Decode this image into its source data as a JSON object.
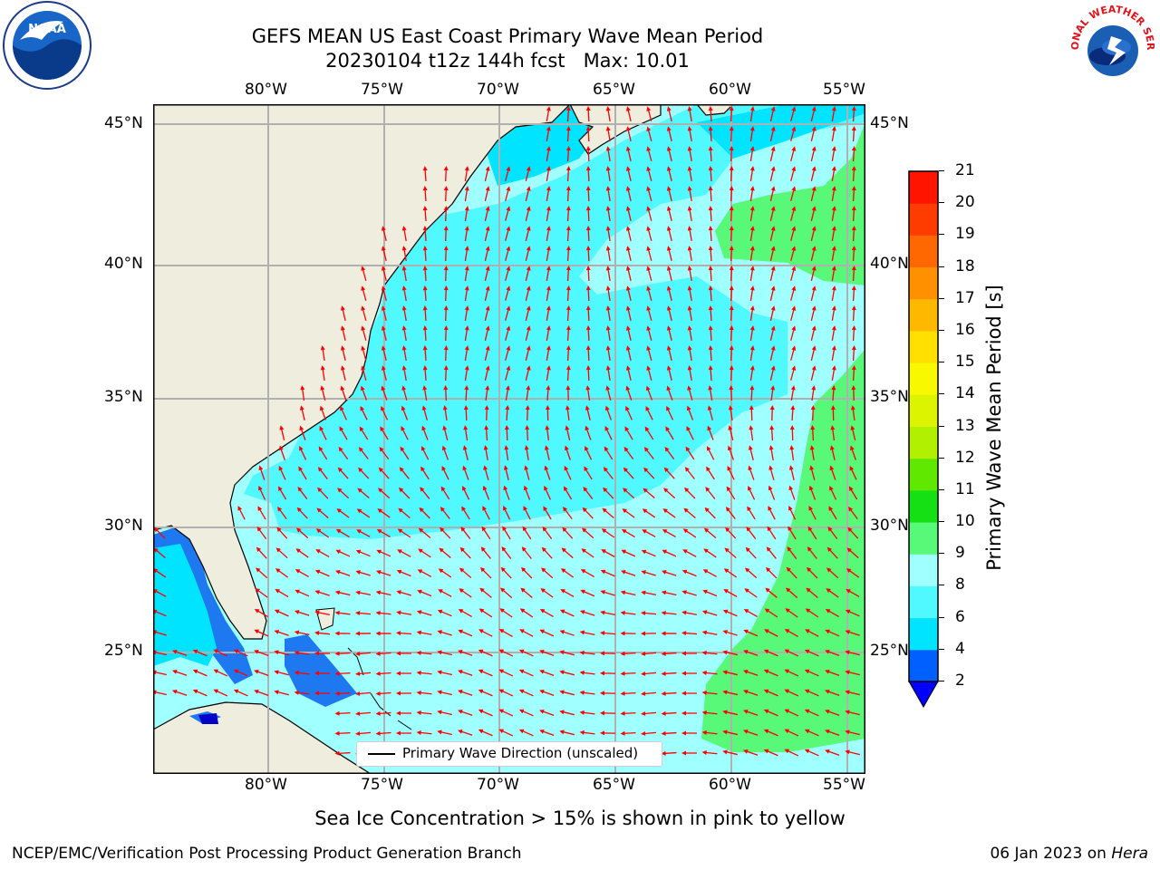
{
  "title": {
    "line1": "GEFS MEAN US East Coast Primary Wave Mean Period",
    "line2": "20230104 t12z 144h fcst   Max: 10.01"
  },
  "axes": {
    "lon_labels": [
      "80°W",
      "75°W",
      "70°W",
      "65°W",
      "60°W",
      "55°W"
    ],
    "lat_labels": [
      "45°N",
      "40°N",
      "35°N",
      "30°N",
      "25°N"
    ]
  },
  "legend": {
    "label": "Primary Wave Direction (unscaled)"
  },
  "colorbar": {
    "label": "Primary Wave Mean Period [s]",
    "ticks": [
      "2",
      "4",
      "6",
      "8",
      "9",
      "10",
      "11",
      "12",
      "13",
      "14",
      "15",
      "16",
      "17",
      "18",
      "19",
      "20",
      "21"
    ],
    "colors": [
      "#0060ff",
      "#00e4ff",
      "#50f8ff",
      "#a0ffff",
      "#58f878",
      "#14e014",
      "#60e800",
      "#b0f000",
      "#dcf400",
      "#f8f800",
      "#ffe000",
      "#ffb800",
      "#ff9000",
      "#ff6800",
      "#ff3c00",
      "#ff1400"
    ]
  },
  "map_colors": {
    "land": "#efedde",
    "ocean_8_9": "#a0ffff",
    "ocean_6_8": "#50f8ff",
    "ocean_4_6": "#00e4ff",
    "ocean_2_4": "#1e78f0",
    "ocean_9_10": "#58f878",
    "arrows": "#ff0000"
  },
  "caption": "Sea Ice Concentration > 15% is shown in pink to yellow",
  "footer_left": "NCEP/EMC/Verification Post Processing Product Generation Branch",
  "footer_right_date": "06 Jan 2023 on ",
  "footer_right_host": "Hera",
  "logos": {
    "left": "NOAA",
    "right": "NATIONAL WEATHER SERVICE"
  }
}
